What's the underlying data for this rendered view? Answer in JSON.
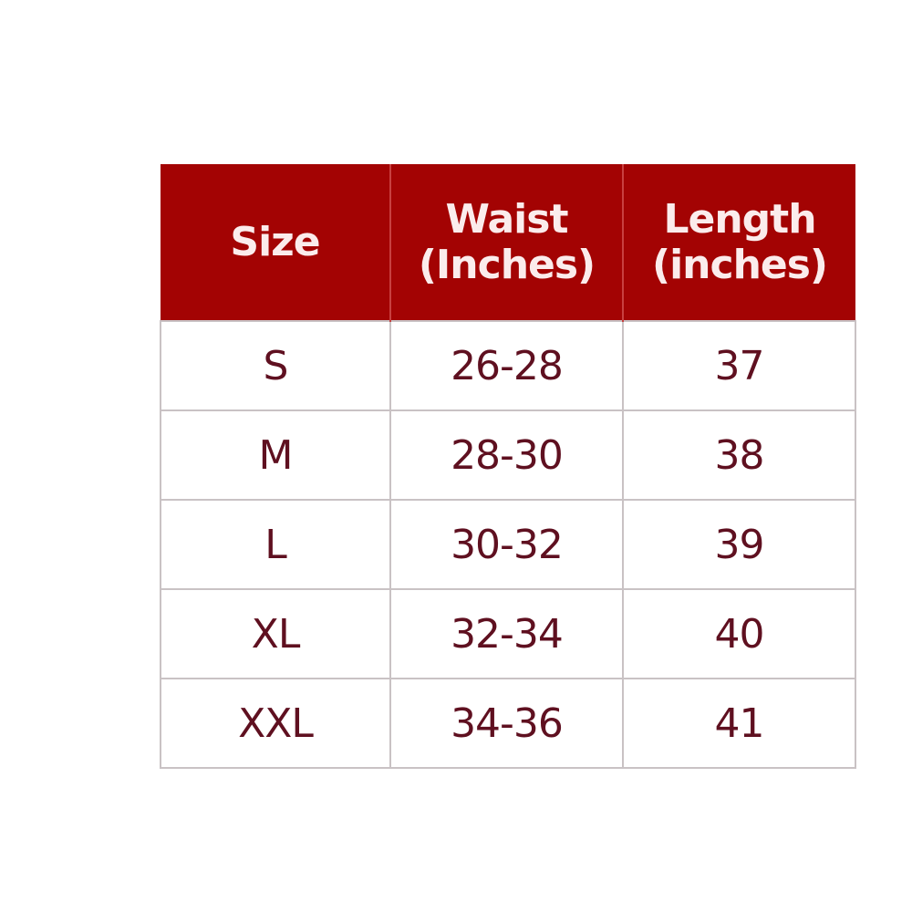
{
  "colors": {
    "header_bg": "#a30303",
    "header_text": "#fbecec",
    "body_text": "#5f1020",
    "border": "#c9c2c4"
  },
  "table": {
    "headers": [
      {
        "line1": "Size",
        "line2": ""
      },
      {
        "line1": "Waist",
        "line2": "(Inches)"
      },
      {
        "line1": "Length",
        "line2": "(inches)"
      }
    ],
    "rows": [
      [
        "S",
        "26-28",
        "37"
      ],
      [
        "M",
        "28-30",
        "38"
      ],
      [
        "L",
        "30-32",
        "39"
      ],
      [
        "XL",
        "32-34",
        "40"
      ],
      [
        "XXL",
        "34-36",
        "41"
      ]
    ]
  }
}
